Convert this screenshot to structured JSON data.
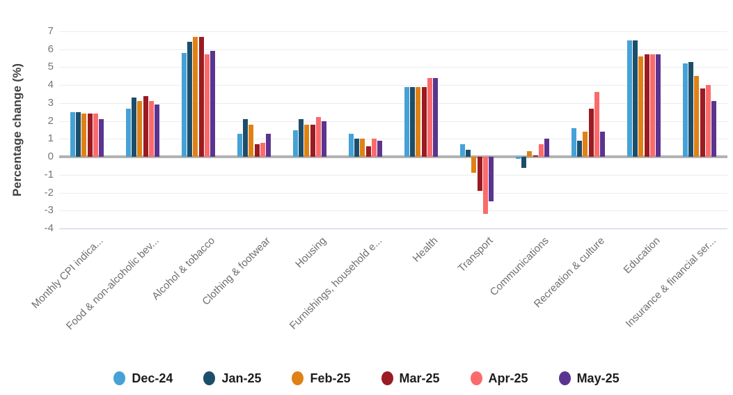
{
  "chart_data": {
    "type": "bar",
    "title": "",
    "ylabel": "Percentage change (%)",
    "xlabel": "",
    "ylim": [
      -4,
      7
    ],
    "yticks": [
      7,
      6,
      5,
      4,
      3,
      2,
      1,
      0,
      -1,
      -2,
      -3,
      -4
    ],
    "grid": true,
    "legend_position": "bottom",
    "categories": [
      "Monthly CPI indica...",
      "Food & non-alcoholic bev...",
      "Alcohol & tobacco",
      "Clothing & footwear",
      "Housing",
      "Furnishings, household e...",
      "Health",
      "Transport",
      "Communications",
      "Recreation & culture",
      "Education",
      "Insurance & financial ser..."
    ],
    "series": [
      {
        "name": "Dec-24",
        "color": "#46A2D6",
        "values": [
          2.5,
          2.7,
          5.8,
          1.3,
          1.5,
          1.3,
          3.9,
          0.7,
          -0.1,
          1.6,
          6.5,
          5.2
        ]
      },
      {
        "name": "Jan-25",
        "color": "#1B4E6B",
        "values": [
          2.5,
          3.3,
          6.4,
          2.1,
          2.1,
          1.0,
          3.9,
          0.4,
          -0.6,
          0.9,
          6.5,
          5.3
        ]
      },
      {
        "name": "Feb-25",
        "color": "#DF8216",
        "values": [
          2.4,
          3.1,
          6.7,
          1.8,
          1.8,
          1.0,
          3.9,
          -0.9,
          0.3,
          1.4,
          5.6,
          4.5
        ]
      },
      {
        "name": "Mar-25",
        "color": "#9A1B21",
        "values": [
          2.4,
          3.4,
          6.7,
          0.7,
          1.8,
          0.6,
          3.9,
          -1.9,
          0.1,
          2.7,
          5.7,
          3.8
        ]
      },
      {
        "name": "Apr-25",
        "color": "#FB6B6B",
        "values": [
          2.4,
          3.1,
          5.7,
          0.8,
          2.2,
          1.0,
          4.4,
          -3.2,
          0.7,
          3.6,
          5.7,
          4.0
        ]
      },
      {
        "name": "May-25",
        "color": "#5B3490",
        "values": [
          2.1,
          2.9,
          5.9,
          1.3,
          2.0,
          0.9,
          4.4,
          -2.5,
          1.0,
          1.4,
          5.7,
          3.1
        ]
      }
    ],
    "colors": {
      "gridline": "#ECECEC",
      "zero_baseline": "#B2B2B2",
      "bottom_gridline": "#C7CBE6",
      "tick_text": "#757575",
      "category_text": "#6F6F6F",
      "axis_title_text": "#404040",
      "legend_text": "#1C1C1C",
      "background": "#FFFFFF"
    }
  }
}
